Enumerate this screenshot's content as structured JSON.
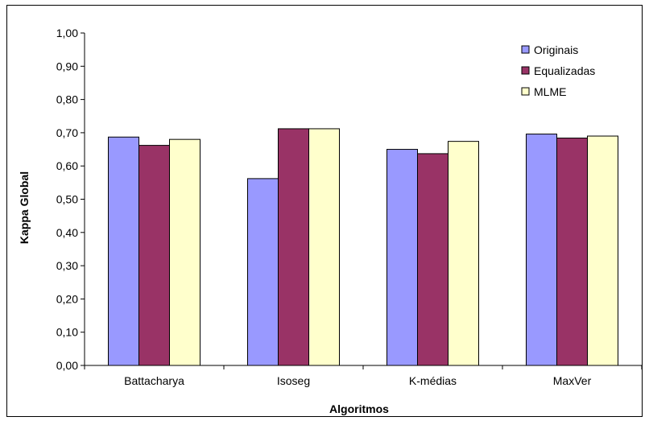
{
  "chart_data": {
    "type": "bar",
    "title": "",
    "xlabel": "Algoritmos",
    "ylabel": "Kappa Global",
    "categories": [
      "Battacharya",
      "Isoseg",
      "K-médias",
      "MaxVer"
    ],
    "series": [
      {
        "name": "Originais",
        "color": "#9999FF",
        "values": [
          0.687,
          0.562,
          0.65,
          0.696
        ]
      },
      {
        "name": "Equalizadas",
        "color": "#993366",
        "values": [
          0.662,
          0.712,
          0.637,
          0.684
        ]
      },
      {
        "name": "MLME",
        "color": "#FFFFCC",
        "values": [
          0.68,
          0.712,
          0.674,
          0.69
        ]
      }
    ],
    "ylim": [
      0,
      1.0
    ],
    "yticks": [
      "0,00",
      "0,10",
      "0,20",
      "0,30",
      "0,40",
      "0,50",
      "0,60",
      "0,70",
      "0,80",
      "0,90",
      "1,00"
    ],
    "grid": false,
    "legend_position": "top-right"
  }
}
